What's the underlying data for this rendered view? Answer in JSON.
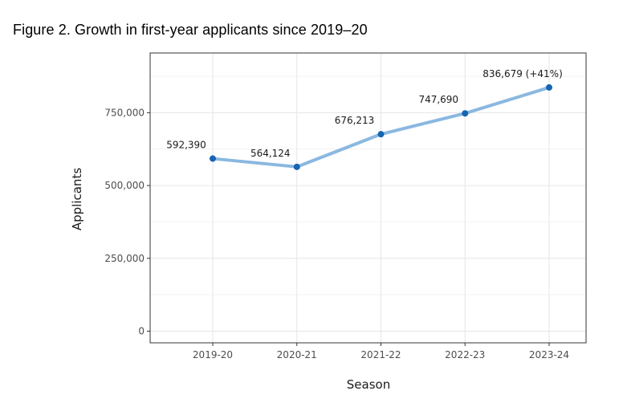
{
  "chart_data": {
    "type": "line",
    "title": "Figure 2. Growth in first-year applicants since 2019–20",
    "xlabel": "Season",
    "ylabel": "Applicants",
    "categories": [
      "2019-20",
      "2020-21",
      "2021-22",
      "2022-23",
      "2023-24"
    ],
    "series": [
      {
        "name": "Applicants",
        "values": [
          592390,
          564124,
          676213,
          747690,
          836679
        ],
        "labels": [
          "592,390",
          "564,124",
          "676,213",
          "747,690",
          "836,679 (+41%)"
        ]
      }
    ],
    "ylim": [
      -40000,
      955000
    ],
    "yticks": [
      0,
      250000,
      500000,
      750000
    ],
    "ytick_labels": [
      "0",
      "250,000",
      "500,000",
      "750,000"
    ],
    "grid": true,
    "line_color": "#8ab8e0",
    "marker_color": "#1565b3",
    "panel_border_color": "#333333",
    "grid_major_color": "#e6e6e6",
    "grid_minor_color": "#f2f2f2"
  }
}
